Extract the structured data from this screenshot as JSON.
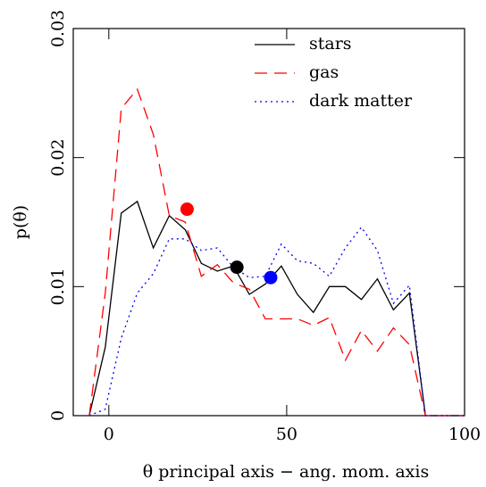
{
  "chart_data": {
    "type": "line",
    "xlabel": "θ principal axis − ang. mom. axis",
    "ylabel": "p(θ)",
    "x": [
      -5.5,
      -1,
      3.5,
      8,
      12.5,
      17,
      21.5,
      26,
      30.5,
      35,
      39.5,
      44,
      48.5,
      53,
      57.5,
      62,
      66.5,
      71,
      75.5,
      80,
      84.5,
      89,
      93.5,
      100
    ],
    "series": [
      {
        "name": "stars",
        "color": "#000000",
        "dash": "solid",
        "values": [
          0,
          0.0053,
          0.0157,
          0.0166,
          0.013,
          0.0155,
          0.0144,
          0.0118,
          0.0112,
          0.0116,
          0.0094,
          0.0102,
          0.0116,
          0.0094,
          0.008,
          0.01,
          0.01,
          0.009,
          0.0106,
          0.0082,
          0.0095,
          0,
          0,
          0
        ]
      },
      {
        "name": "gas",
        "color": "#ff0000",
        "dash": "dashed",
        "values": [
          0,
          0.0095,
          0.0238,
          0.0253,
          0.0218,
          0.0155,
          0.015,
          0.0108,
          0.0117,
          0.0103,
          0.0098,
          0.0075,
          0.0075,
          0.0075,
          0.007,
          0.0076,
          0.0043,
          0.0066,
          0.005,
          0.0068,
          0.0055,
          0,
          0,
          0
        ]
      },
      {
        "name": "dark matter",
        "color": "#0000ff",
        "dash": "dotted",
        "values": [
          0,
          0.0005,
          0.006,
          0.0095,
          0.011,
          0.0137,
          0.0137,
          0.0128,
          0.013,
          0.0115,
          0.0107,
          0.0108,
          0.0133,
          0.012,
          0.0118,
          0.0108,
          0.013,
          0.0146,
          0.0128,
          0.0087,
          0.0101,
          0,
          0,
          0
        ]
      }
    ],
    "markers": [
      {
        "x": 22,
        "y": 0.016,
        "color": "#ff0000"
      },
      {
        "x": 36,
        "y": 0.0115,
        "color": "#000000"
      },
      {
        "x": 45.5,
        "y": 0.0107,
        "color": "#0000ff"
      }
    ],
    "xlim": [
      -10,
      100
    ],
    "xticks": [
      0,
      50,
      100
    ],
    "ylim": [
      0,
      0.03
    ],
    "yticks": [
      0,
      0.01,
      0.02,
      0.03
    ],
    "legend": "upper right"
  }
}
